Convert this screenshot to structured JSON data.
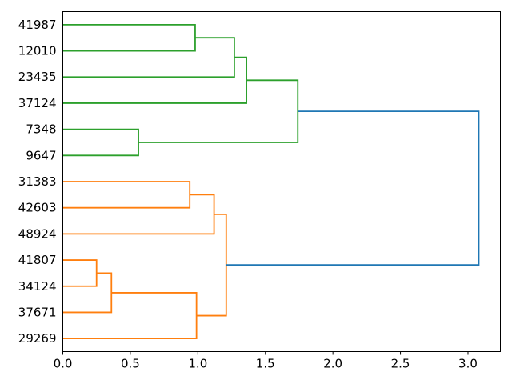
{
  "figure": {
    "background": "#ffffff",
    "axis_color": "#000000"
  },
  "chart_data": {
    "type": "dendrogram",
    "orientation": "root-right-leaves-left",
    "title": "",
    "xlabel": "",
    "ylabel": "",
    "grid": false,
    "xlim": [
      0,
      3.24
    ],
    "x_ticks": [
      {
        "value": 0.0,
        "label": "0.0"
      },
      {
        "value": 0.5,
        "label": "0.5"
      },
      {
        "value": 1.0,
        "label": "1.0"
      },
      {
        "value": 1.5,
        "label": "1.5"
      },
      {
        "value": 2.0,
        "label": "2.0"
      },
      {
        "value": 2.5,
        "label": "2.5"
      },
      {
        "value": 3.0,
        "label": "3.0"
      }
    ],
    "leaves": [
      "41987",
      "12010",
      "23435",
      "37124",
      "7348",
      "9647",
      "31383",
      "42603",
      "48924",
      "41807",
      "34124",
      "37671",
      "29269"
    ],
    "links": [
      {
        "id": "C0",
        "a": "L0",
        "b": "L1",
        "height": 0.98,
        "color_key": "green"
      },
      {
        "id": "C1",
        "a": "C0",
        "b": "L2",
        "height": 1.27,
        "color_key": "green"
      },
      {
        "id": "C2",
        "a": "C1",
        "b": "L3",
        "height": 1.36,
        "color_key": "green"
      },
      {
        "id": "C3",
        "a": "L4",
        "b": "L5",
        "height": 0.56,
        "color_key": "green"
      },
      {
        "id": "C4",
        "a": "C2",
        "b": "C3",
        "height": 1.74,
        "color_key": "green"
      },
      {
        "id": "C5",
        "a": "L6",
        "b": "L7",
        "height": 0.94,
        "color_key": "orange"
      },
      {
        "id": "C6",
        "a": "C5",
        "b": "L8",
        "height": 1.12,
        "color_key": "orange"
      },
      {
        "id": "C7",
        "a": "L9",
        "b": "L10",
        "height": 0.25,
        "color_key": "orange"
      },
      {
        "id": "C8",
        "a": "C7",
        "b": "L11",
        "height": 0.36,
        "color_key": "orange"
      },
      {
        "id": "C9",
        "a": "C8",
        "b": "L12",
        "height": 0.99,
        "color_key": "orange"
      },
      {
        "id": "C10",
        "a": "C6",
        "b": "C9",
        "height": 1.21,
        "color_key": "orange"
      },
      {
        "id": "C11",
        "a": "C4",
        "b": "C10",
        "height": 3.08,
        "color_key": "blue"
      }
    ],
    "colors": {
      "green": "#2ca02c",
      "orange": "#ff7f0e",
      "blue": "#1f77b4"
    }
  }
}
